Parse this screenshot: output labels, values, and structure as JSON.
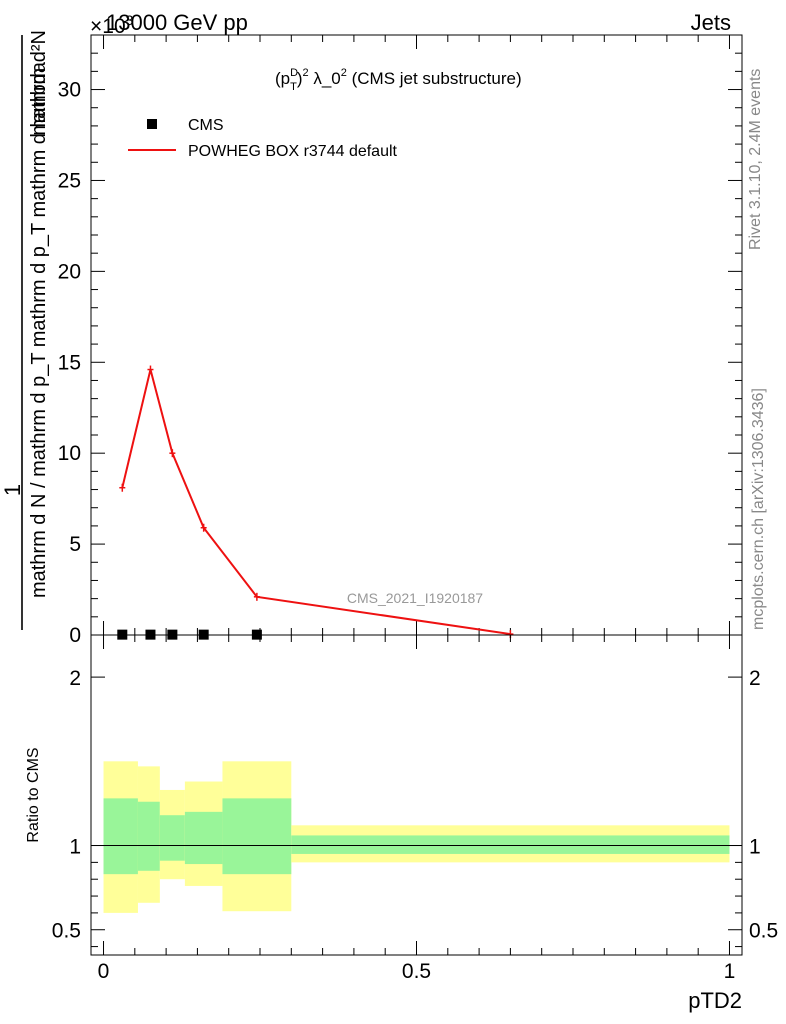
{
  "header": {
    "left": "13000 GeV pp",
    "right": "Jets",
    "exponent": "×10",
    "exponent_power": "3"
  },
  "side_labels": {
    "rivet": "Rivet 3.1.10,  2.4M events",
    "mcplots": "mcplots.cern.ch [arXiv:1306.3436]"
  },
  "watermark": "CMS_2021_I1920187",
  "chart_data": [
    {
      "type": "line",
      "title": "(p_T^D)^2 λ_0^2 (CMS jet substructure)",
      "title_parts": {
        "a": "(p",
        "sup1": "D",
        "sub1": "T",
        "b": ")",
        "sup2": "2",
        "c": " λ_0",
        "sup3": "2",
        "d": " (CMS jet substructure)"
      },
      "xlabel": "pTD2",
      "ylabel": {
        "numerator": "1",
        "denominator": "mathrm d N / mathrm d p_T mathrm d p_T mathrm d lambda",
        "d_N": "mathrm d²N"
      },
      "ylabel_lines": [
        "mathrm d N / mathrm d p_T mathrm d p_T mathrm d lambda",
        "mathrm d²N"
      ],
      "y_multiplier": 1000,
      "xlim": [
        -0.02,
        1.02
      ],
      "ylim": [
        0,
        33
      ],
      "x_ticks": [
        "0",
        "0.5",
        "1"
      ],
      "y_ticks": [
        "0",
        "5",
        "10",
        "15",
        "20",
        "25",
        "30"
      ],
      "legend_position": "top-left",
      "series": [
        {
          "name": "CMS",
          "marker": "square",
          "color": "#000000",
          "x": [
            0.03,
            0.075,
            0.11,
            0.16,
            0.245
          ],
          "y": [
            0.02,
            0.02,
            0.02,
            0.02,
            0.02
          ]
        },
        {
          "name": "POWHEG BOX r3744 default",
          "marker": "line",
          "color": "#ee1111",
          "x": [
            0.03,
            0.075,
            0.11,
            0.16,
            0.245,
            0.65
          ],
          "y": [
            8.1,
            14.6,
            10.0,
            5.9,
            2.1,
            0.05
          ]
        }
      ]
    },
    {
      "type": "area",
      "ylabel": "Ratio to CMS",
      "xlabel": "pTD2",
      "xlim": [
        -0.02,
        1.02
      ],
      "ylim": [
        0.35,
        2.25
      ],
      "x_ticks": [
        "0",
        "0.5",
        "1"
      ],
      "y_ticks": [
        "0.5",
        "1",
        "2"
      ],
      "reference_line": 1,
      "bins": [
        {
          "x0": 0.0,
          "x1": 0.055,
          "inner": [
            0.83,
            1.28
          ],
          "outer": [
            0.6,
            1.5
          ]
        },
        {
          "x0": 0.055,
          "x1": 0.09,
          "inner": [
            0.85,
            1.26
          ],
          "outer": [
            0.66,
            1.47
          ]
        },
        {
          "x0": 0.09,
          "x1": 0.13,
          "inner": [
            0.91,
            1.18
          ],
          "outer": [
            0.8,
            1.33
          ]
        },
        {
          "x0": 0.13,
          "x1": 0.19,
          "inner": [
            0.89,
            1.2
          ],
          "outer": [
            0.76,
            1.38
          ]
        },
        {
          "x0": 0.19,
          "x1": 0.3,
          "inner": [
            0.83,
            1.28
          ],
          "outer": [
            0.61,
            1.5
          ]
        },
        {
          "x0": 0.3,
          "x1": 1.0,
          "inner": [
            0.95,
            1.06
          ],
          "outer": [
            0.9,
            1.12
          ]
        }
      ],
      "colors": {
        "inner": "#99f599",
        "outer": "#ffff99"
      }
    }
  ]
}
